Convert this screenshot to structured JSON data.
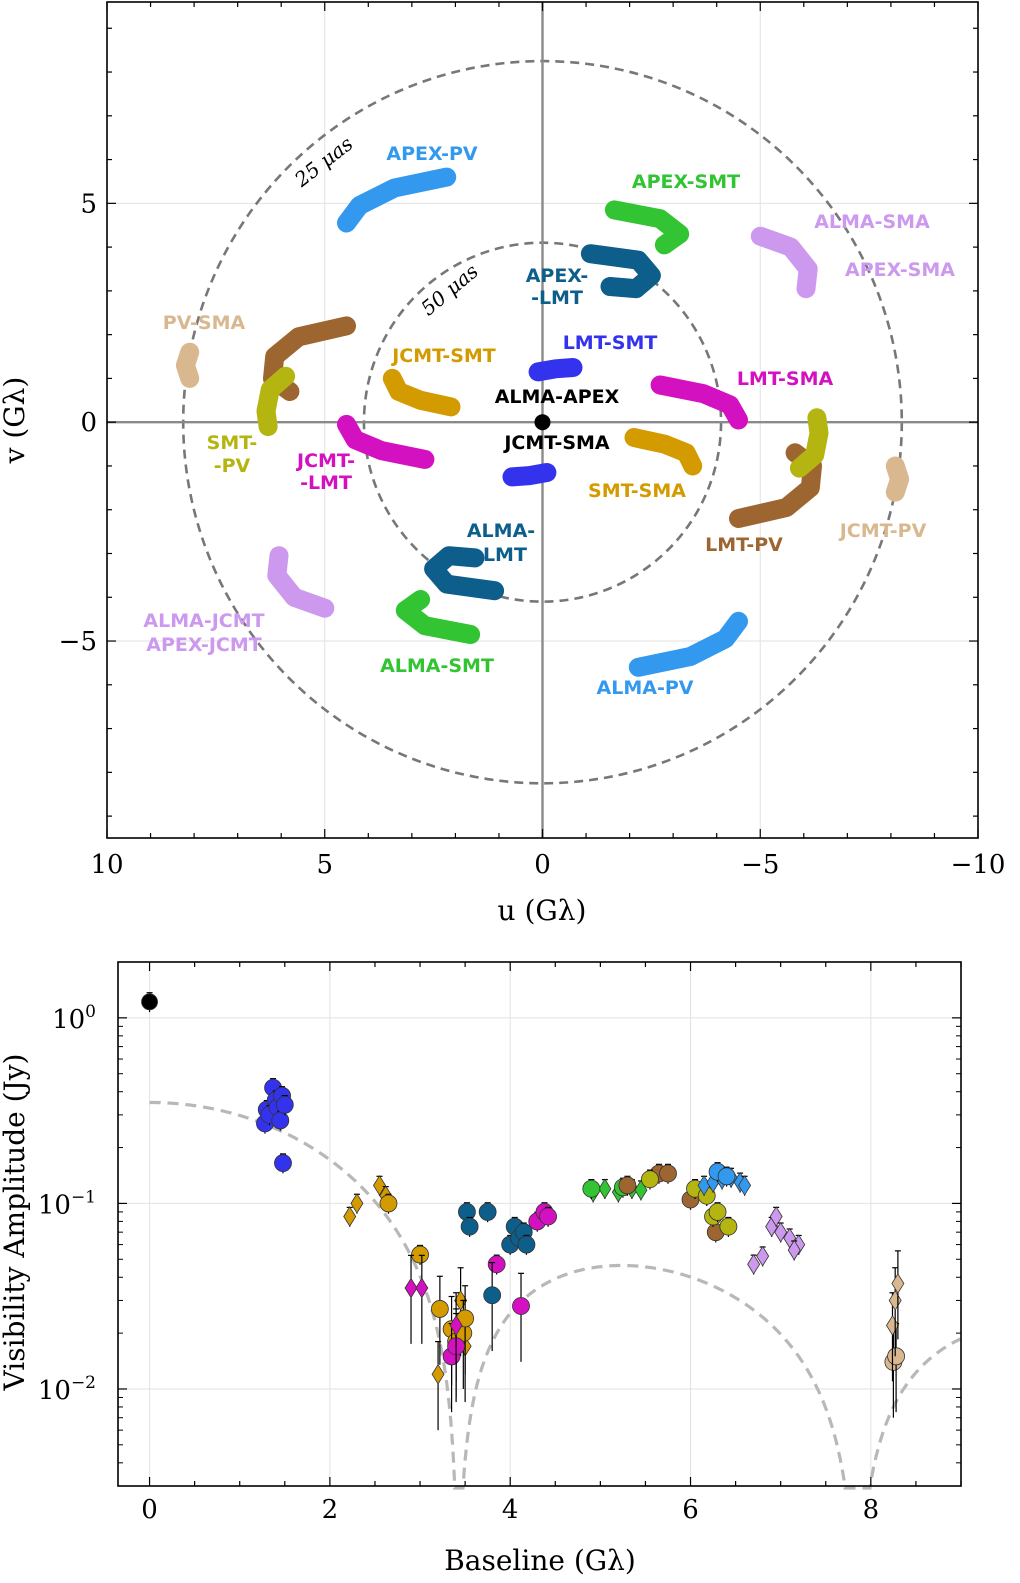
{
  "top_panel": {
    "xlabel": "u (Gλ)",
    "ylabel": "v (Gλ)",
    "x_ticks": [
      {
        "v": 10,
        "t": "10"
      },
      {
        "v": 5,
        "t": "5"
      },
      {
        "v": 0,
        "t": "0"
      },
      {
        "v": -5,
        "t": "−5"
      },
      {
        "v": -10,
        "t": "−10"
      }
    ],
    "y_ticks": [
      {
        "v": 5,
        "t": "5"
      },
      {
        "v": 0,
        "t": "0"
      },
      {
        "v": -5,
        "t": "−5"
      }
    ],
    "ring_25": "25 μas",
    "ring_50": "50 μas"
  },
  "bottom_panel": {
    "xlabel": "Baseline (Gλ)",
    "ylabel": "Visibility Amplitude (Jy)",
    "x_ticks": [
      "0",
      "2",
      "4",
      "6",
      "8"
    ],
    "y_ticks": [
      {
        "v": 0.01,
        "b": "10",
        "e": "−2"
      },
      {
        "v": 0.1,
        "b": "10",
        "e": "−1"
      },
      {
        "v": 1,
        "b": "10",
        "e": "0"
      }
    ]
  },
  "chart_data": [
    {
      "type": "scatter",
      "title": "",
      "xlabel": "u (Gλ)",
      "ylabel": "v (Gλ)",
      "xlim": [
        10,
        -10
      ],
      "ylim": [
        -9.5,
        9.6
      ],
      "grid": true,
      "rings": [
        {
          "radius": 8.25,
          "label": "25 μas"
        },
        {
          "radius": 4.1,
          "label": "50 μas"
        }
      ],
      "series": [
        {
          "name": "ALMA-APEX",
          "color": "#000000",
          "points": [
            [
              0,
              0
            ]
          ]
        },
        {
          "name": "LMT-SMT",
          "color": "#3333ee",
          "points": [
            [
              -0.7,
              1.25
            ],
            [
              -0.3,
              1.22
            ],
            [
              0.1,
              1.15
            ]
          ]
        },
        {
          "name": "JCMT-SMA",
          "color": "#3333ee",
          "points": [
            [
              0.7,
              -1.25
            ],
            [
              0.3,
              -1.22
            ],
            [
              -0.1,
              -1.15
            ]
          ]
        },
        {
          "name": "JCMT-SMT",
          "color": "#d39b00",
          "points": [
            [
              3.45,
              1.0
            ],
            [
              3.3,
              0.7
            ],
            [
              2.8,
              0.5
            ],
            [
              2.1,
              0.35
            ]
          ]
        },
        {
          "name": "SMT-SMA",
          "color": "#d39b00",
          "points": [
            [
              -2.1,
              -0.35
            ],
            [
              -2.8,
              -0.5
            ],
            [
              -3.3,
              -0.7
            ],
            [
              -3.45,
              -1.0
            ]
          ]
        },
        {
          "name": "LMT-SMA",
          "color": "#d411c0",
          "points": [
            [
              -2.7,
              0.85
            ],
            [
              -3.7,
              0.65
            ],
            [
              -4.3,
              0.4
            ],
            [
              -4.5,
              0.05
            ]
          ]
        },
        {
          "name": "JCMT-LMT",
          "color": "#d411c0",
          "points": [
            [
              4.5,
              -0.05
            ],
            [
              4.3,
              -0.4
            ],
            [
              3.7,
              -0.65
            ],
            [
              2.7,
              -0.85
            ]
          ]
        },
        {
          "name": "APEX-LMT",
          "color": "#0d5e8a",
          "points": [
            [
              -1.1,
              3.85
            ],
            [
              -2.2,
              3.7
            ],
            [
              -2.5,
              3.35
            ],
            [
              -2.15,
              3.05
            ],
            [
              -1.55,
              3.1
            ]
          ]
        },
        {
          "name": "ALMA-LMT",
          "color": "#0d5e8a",
          "points": [
            [
              1.1,
              -3.85
            ],
            [
              2.2,
              -3.7
            ],
            [
              2.5,
              -3.35
            ],
            [
              2.15,
              -3.05
            ],
            [
              1.55,
              -3.1
            ]
          ]
        },
        {
          "name": "APEX-SMT",
          "color": "#33c433",
          "points": [
            [
              -1.65,
              4.85
            ],
            [
              -2.7,
              4.65
            ],
            [
              -3.15,
              4.3
            ],
            [
              -2.8,
              4.05
            ]
          ]
        },
        {
          "name": "ALMA-SMT",
          "color": "#33c433",
          "points": [
            [
              1.65,
              -4.85
            ],
            [
              2.7,
              -4.65
            ],
            [
              3.15,
              -4.3
            ],
            [
              2.8,
              -4.05
            ]
          ]
        },
        {
          "name": "APEX-PV",
          "color": "#3399ee",
          "points": [
            [
              2.2,
              5.6
            ],
            [
              3.4,
              5.35
            ],
            [
              4.2,
              4.95
            ],
            [
              4.5,
              4.55
            ]
          ]
        },
        {
          "name": "ALMA-PV",
          "color": "#3399ee",
          "points": [
            [
              -2.2,
              -5.6
            ],
            [
              -3.4,
              -5.35
            ],
            [
              -4.2,
              -4.95
            ],
            [
              -4.5,
              -4.55
            ]
          ]
        },
        {
          "name": "ALMA-SMA/APEX-SMA",
          "color": "#cc99ee",
          "points": [
            [
              -5.0,
              4.25
            ],
            [
              -5.7,
              4.0
            ],
            [
              -6.1,
              3.5
            ],
            [
              -6.05,
              3.05
            ]
          ]
        },
        {
          "name": "ALMA-JCMT/APEX-JCMT",
          "color": "#cc99ee",
          "points": [
            [
              5.0,
              -4.25
            ],
            [
              5.7,
              -4.0
            ],
            [
              6.1,
              -3.5
            ],
            [
              6.05,
              -3.05
            ]
          ]
        },
        {
          "name": "LMT-PV",
          "color": "#9d6530",
          "points": [
            [
              -4.5,
              -2.2
            ],
            [
              -5.6,
              -1.95
            ],
            [
              -6.15,
              -1.5
            ],
            [
              -6.2,
              -1.0
            ],
            [
              -5.8,
              -0.7
            ]
          ]
        },
        {
          "name": "JCMT/SMT-PV",
          "color": "#9d6530",
          "points": [
            [
              4.5,
              2.2
            ],
            [
              5.6,
              1.95
            ],
            [
              6.15,
              1.5
            ],
            [
              6.2,
              1.0
            ],
            [
              5.8,
              0.7
            ]
          ]
        },
        {
          "name": "SMT-PV",
          "color": "#b5b511",
          "points": [
            [
              5.9,
              1.05
            ],
            [
              6.25,
              0.75
            ],
            [
              6.35,
              0.25
            ],
            [
              6.3,
              -0.1
            ]
          ]
        },
        {
          "name": "JCMT-SMA/SMT-PV",
          "color": "#b5b511",
          "points": [
            [
              -5.9,
              -1.05
            ],
            [
              -6.25,
              -0.75
            ],
            [
              -6.35,
              -0.25
            ],
            [
              -6.3,
              0.1
            ]
          ]
        },
        {
          "name": "PV-SMA",
          "color": "#d9b890",
          "points": [
            [
              8.1,
              1.6
            ],
            [
              8.2,
              1.3
            ],
            [
              8.1,
              1.0
            ]
          ]
        },
        {
          "name": "JCMT-PV",
          "color": "#d9b890",
          "points": [
            [
              -8.1,
              -1.6
            ],
            [
              -8.2,
              -1.3
            ],
            [
              -8.1,
              -1.0
            ]
          ]
        }
      ],
      "annotations": [
        {
          "text": "APEX-PV",
          "color": "#3399ee"
        },
        {
          "text": "APEX-SMT",
          "color": "#33c433"
        },
        {
          "text": "ALMA-SMA",
          "color": "#cc99ee"
        },
        {
          "text": "APEX-SMA",
          "color": "#cc99ee"
        },
        {
          "text": "APEX-",
          "color": "#0d5e8a"
        },
        {
          "text": "-LMT",
          "color": "#0d5e8a"
        },
        {
          "text": "PV-SMA",
          "color": "#d9b890"
        },
        {
          "text": "JCMT-SMT",
          "color": "#d39b00"
        },
        {
          "text": "LMT-SMT",
          "color": "#3333ee"
        },
        {
          "text": "LMT-SMA",
          "color": "#d411c0"
        },
        {
          "text": "ALMA-APEX",
          "color": "#000000"
        },
        {
          "text": "JCMT-SMA",
          "color": "#000000"
        },
        {
          "text": "SMT-",
          "color": "#b5b511"
        },
        {
          "text": "-PV",
          "color": "#b5b511"
        },
        {
          "text": "JCMT-",
          "color": "#d411c0"
        },
        {
          "text": "-LMT",
          "color": "#d411c0"
        },
        {
          "text": "SMT-SMA",
          "color": "#d39b00"
        },
        {
          "text": "JCMT-PV",
          "color": "#d9b890"
        },
        {
          "text": "LMT-PV",
          "color": "#9d6530"
        },
        {
          "text": "ALMA-",
          "color": "#0d5e8a"
        },
        {
          "text": "-LMT",
          "color": "#0d5e8a"
        },
        {
          "text": "ALMA-JCMT",
          "color": "#cc99ee"
        },
        {
          "text": "APEX-JCMT",
          "color": "#cc99ee"
        },
        {
          "text": "ALMA-SMT",
          "color": "#33c433"
        },
        {
          "text": "ALMA-PV",
          "color": "#3399ee"
        }
      ]
    },
    {
      "type": "scatter",
      "title": "",
      "xlabel": "Baseline (Gλ)",
      "ylabel": "Visibility Amplitude (Jy)",
      "xlim": [
        -0.35,
        9.0
      ],
      "ylim": [
        0.003,
        2.0
      ],
      "yscale": "log",
      "grid": true,
      "model_curve": {
        "style": "dashed",
        "color": "#b8b8b8",
        "x_first_null": 3.42,
        "x_second_null": 7.85,
        "peak_at_zero": 0.35
      },
      "series": [
        {
          "name": "ALMA-APEX",
          "color": "#000000",
          "marker": "circle",
          "points": [
            [
              0.0,
              1.22
            ]
          ]
        },
        {
          "name": "LMT-SMT / JCMT-SMA",
          "color": "#3333ee",
          "marker": "circle",
          "points": [
            [
              1.28,
              0.27
            ],
            [
              1.3,
              0.32
            ],
            [
              1.33,
              0.3
            ],
            [
              1.37,
              0.42
            ],
            [
              1.4,
              0.36
            ],
            [
              1.42,
              0.33
            ],
            [
              1.45,
              0.28
            ],
            [
              1.47,
              0.38
            ],
            [
              1.5,
              0.34
            ],
            [
              1.48,
              0.165
            ]
          ]
        },
        {
          "name": "JCMT-SMT / SMT-SMA",
          "color": "#d39b00",
          "marker": "diamond",
          "points": [
            [
              2.22,
              0.085
            ],
            [
              2.3,
              0.1
            ],
            [
              2.55,
              0.125
            ],
            [
              2.62,
              0.11
            ],
            [
              3.2,
              0.012
            ],
            [
              3.45,
              0.03
            ],
            [
              3.5,
              0.017
            ]
          ]
        },
        {
          "name": "JCMT-SMT / SMT-SMA (circ)",
          "color": "#d39b00",
          "marker": "circle",
          "points": [
            [
              2.65,
              0.1
            ],
            [
              3.0,
              0.053
            ],
            [
              3.22,
              0.027
            ],
            [
              3.35,
              0.021
            ],
            [
              3.4,
              0.018
            ],
            [
              3.48,
              0.02
            ],
            [
              3.5,
              0.024
            ]
          ]
        },
        {
          "name": "LMT-SMA / JCMT-LMT",
          "color": "#d411c0",
          "marker": "circle",
          "points": [
            [
              3.35,
              0.015
            ],
            [
              3.4,
              0.017
            ],
            [
              3.85,
              0.047
            ],
            [
              4.12,
              0.028
            ],
            [
              4.3,
              0.08
            ],
            [
              4.38,
              0.09
            ],
            [
              4.42,
              0.085
            ]
          ]
        },
        {
          "name": "LMT-SMA / JCMT-LMT (dia)",
          "color": "#d411c0",
          "marker": "diamond",
          "points": [
            [
              2.9,
              0.035
            ],
            [
              3.02,
              0.035
            ],
            [
              3.4,
              0.022
            ]
          ]
        },
        {
          "name": "APEX-LMT / ALMA-LMT",
          "color": "#0d5e8a",
          "marker": "circle",
          "points": [
            [
              3.52,
              0.09
            ],
            [
              3.55,
              0.075
            ],
            [
              3.75,
              0.09
            ],
            [
              3.8,
              0.032
            ],
            [
              4.0,
              0.06
            ],
            [
              4.05,
              0.075
            ],
            [
              4.1,
              0.065
            ],
            [
              4.15,
              0.07
            ],
            [
              4.18,
              0.06
            ]
          ]
        },
        {
          "name": "APEX-SMT / ALMA-SMT",
          "color": "#33c433",
          "marker": "diamond",
          "points": [
            [
              4.92,
              0.115
            ],
            [
              5.05,
              0.12
            ],
            [
              5.2,
              0.115
            ],
            [
              5.35,
              0.12
            ],
            [
              5.45,
              0.118
            ]
          ]
        },
        {
          "name": "LMT-PV (green circ)",
          "color": "#33c433",
          "marker": "circle",
          "points": [
            [
              4.9,
              0.12
            ],
            [
              5.25,
              0.122
            ]
          ]
        },
        {
          "name": "LMT-PV",
          "color": "#9d6530",
          "marker": "circle",
          "points": [
            [
              5.3,
              0.125
            ],
            [
              5.65,
              0.145
            ],
            [
              5.75,
              0.145
            ],
            [
              6.0,
              0.105
            ],
            [
              6.28,
              0.07
            ]
          ]
        },
        {
          "name": "SMT-PV / JCMT-SMA",
          "color": "#b5b511",
          "marker": "circle",
          "points": [
            [
              5.55,
              0.135
            ],
            [
              6.05,
              0.12
            ],
            [
              6.18,
              0.11
            ],
            [
              6.25,
              0.085
            ],
            [
              6.3,
              0.09
            ],
            [
              6.42,
              0.075
            ]
          ]
        },
        {
          "name": "APEX-PV / ALMA-PV",
          "color": "#3399ee",
          "marker": "diamond",
          "points": [
            [
              6.15,
              0.125
            ],
            [
              6.25,
              0.13
            ],
            [
              6.35,
              0.135
            ],
            [
              6.45,
              0.138
            ],
            [
              6.55,
              0.13
            ],
            [
              6.6,
              0.125
            ]
          ]
        },
        {
          "name": "APEX-PV / ALMA-PV (circ)",
          "color": "#3399ee",
          "marker": "circle",
          "points": [
            [
              6.3,
              0.148
            ],
            [
              6.4,
              0.14
            ]
          ]
        },
        {
          "name": "ALMA-SMA / ALMA-JCMT",
          "color": "#cc99ee",
          "marker": "diamond",
          "points": [
            [
              6.7,
              0.047
            ],
            [
              6.8,
              0.052
            ],
            [
              6.9,
              0.075
            ],
            [
              6.95,
              0.085
            ],
            [
              7.0,
              0.07
            ],
            [
              7.1,
              0.065
            ],
            [
              7.2,
              0.06
            ],
            [
              7.15,
              0.056
            ]
          ]
        },
        {
          "name": "PV-SMA / JCMT-PV",
          "color": "#d9b890",
          "marker": "circle",
          "points": [
            [
              8.25,
              0.014
            ],
            [
              8.28,
              0.015
            ]
          ]
        },
        {
          "name": "PV-SMA / JCMT-PV (dia)",
          "color": "#d9b890",
          "marker": "diamond",
          "points": [
            [
              8.24,
              0.022
            ],
            [
              8.27,
              0.03
            ],
            [
              8.3,
              0.037
            ]
          ]
        }
      ]
    }
  ]
}
